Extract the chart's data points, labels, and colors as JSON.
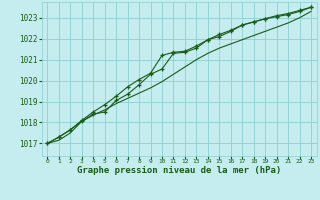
{
  "title": "Graphe pression niveau de la mer (hPa)",
  "background_color": "#c5ecee",
  "grid_color": "#8ecfcf",
  "line_color": "#1a5c1a",
  "x_ticks": [
    0,
    1,
    2,
    3,
    4,
    5,
    6,
    7,
    8,
    9,
    10,
    11,
    12,
    13,
    14,
    15,
    16,
    17,
    18,
    19,
    20,
    21,
    22,
    23
  ],
  "y_ticks": [
    1017,
    1018,
    1019,
    1020,
    1021,
    1022,
    1023
  ],
  "ylim": [
    1016.4,
    1023.75
  ],
  "xlim": [
    -0.5,
    23.5
  ],
  "line_smooth": [
    1017.0,
    1017.15,
    1017.5,
    1018.05,
    1018.35,
    1018.6,
    1018.9,
    1019.15,
    1019.4,
    1019.65,
    1019.95,
    1020.3,
    1020.65,
    1021.0,
    1021.3,
    1021.55,
    1021.75,
    1021.95,
    1022.15,
    1022.35,
    1022.55,
    1022.75,
    1023.0,
    1023.3
  ],
  "line_upper": [
    1017.0,
    1017.3,
    1017.65,
    1018.1,
    1018.5,
    1018.85,
    1019.25,
    1019.7,
    1020.05,
    1020.35,
    1021.2,
    1021.35,
    1021.4,
    1021.65,
    1021.95,
    1022.2,
    1022.4,
    1022.65,
    1022.8,
    1022.95,
    1023.1,
    1023.2,
    1023.35,
    1023.5
  ],
  "line_lower": [
    1017.0,
    1017.3,
    1017.65,
    1018.05,
    1018.4,
    1018.5,
    1019.05,
    1019.35,
    1019.8,
    1020.3,
    1020.55,
    1021.3,
    1021.35,
    1021.55,
    1021.95,
    1022.1,
    1022.35,
    1022.65,
    1022.8,
    1022.95,
    1023.05,
    1023.15,
    1023.3,
    1023.5
  ]
}
